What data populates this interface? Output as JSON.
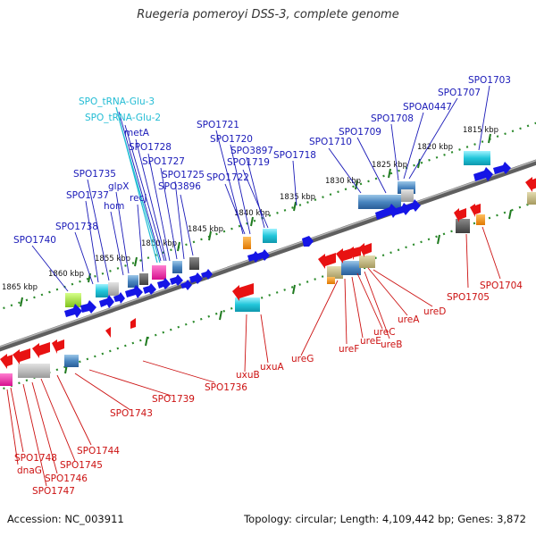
{
  "title": "Ruegeria pomeroyi DSS-3, complete genome",
  "accession": "Accession: NC_003911",
  "summary": "Topology: circular; Length: 4,109,442 bp; Genes: 3,872",
  "colors": {
    "forward_label": "#1a1ab8",
    "trna_label": "#22bcd4",
    "reverse_label": "#cc1111",
    "forward_gene": "#1515e6",
    "reverse_gene": "#e81212",
    "ruler": "#2b8a2b",
    "backbone": "#7a7a7a"
  },
  "scale_labels": [
    "1865 kbp",
    "1860 kbp",
    "1855 kbp",
    "1850 kbp",
    "1845 kbp",
    "1840 kbp",
    "1835 kbp",
    "1830 kbp",
    "1825 kbp",
    "1820 kbp",
    "1815 kbp"
  ],
  "forward_labels": [
    "SPO_tRNA-Glu-3",
    "SPO_tRNA-Glu-2",
    "metA",
    "SPO1728",
    "SPO1727",
    "SPO1725",
    "SPO3896",
    "SPO1721",
    "SPO1720",
    "SPO3897",
    "SPO1719",
    "SPO1722",
    "SPO1718",
    "SPO1735",
    "glpX",
    "SPO1737",
    "hom",
    "recJ",
    "SPO1738",
    "SPO1740",
    "SPO1710",
    "SPO1709",
    "SPO1708",
    "SPOA0447",
    "SPO1707",
    "SPO1703"
  ],
  "reverse_labels": [
    "SPO1705",
    "SPO1704",
    "ureD",
    "ureA",
    "ureB",
    "ureC",
    "ureE",
    "ureF",
    "ureG",
    "uxuA",
    "uxuB",
    "SPO1736",
    "SPO1739",
    "SPO1743",
    "SPO1744",
    "SPO1745",
    "SPO1746",
    "SPO1747",
    "SPO1748",
    "dnaG"
  ]
}
